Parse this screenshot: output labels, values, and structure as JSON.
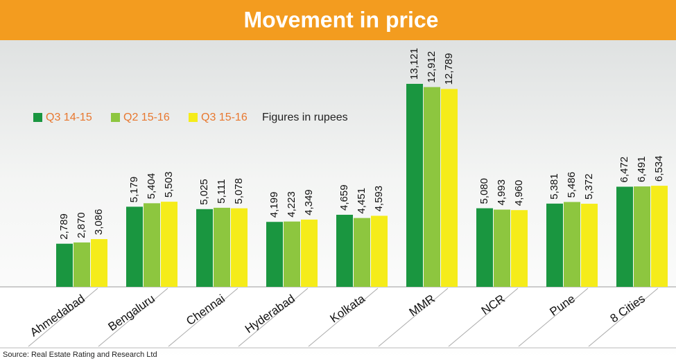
{
  "chart_data": {
    "type": "bar",
    "title": "Movement in price",
    "annotation": "Figures in rupees",
    "source": "Source: Real Estate Rating and Research Ltd",
    "categories": [
      "Ahmedabad",
      "Bengaluru",
      "Chennai",
      "Hyderabad",
      "Kolkata",
      "MMR",
      "NCR",
      "Pune",
      "8 Cities"
    ],
    "series": [
      {
        "name": "Q3 14-15",
        "color": "#1a9640",
        "values": [
          2789,
          5179,
          5025,
          4199,
          4659,
          13121,
          5080,
          5381,
          6472
        ],
        "value_labels": [
          "2,789",
          "5,179",
          "5,025",
          "4,199",
          "4,659",
          "13,121",
          "5,080",
          "5,381",
          "6,472"
        ]
      },
      {
        "name": "Q2 15-16",
        "color": "#8dc63f",
        "values": [
          2870,
          5404,
          5111,
          4223,
          4451,
          12912,
          4993,
          5486,
          6491
        ],
        "value_labels": [
          "2,870",
          "5,404",
          "5,111",
          "4,223",
          "4,451",
          "12,912",
          "4,993",
          "5,486",
          "6,491"
        ]
      },
      {
        "name": "Q3 15-16",
        "color": "#f5ec1a",
        "values": [
          3086,
          5503,
          5078,
          4349,
          4593,
          12789,
          4960,
          5372,
          6534
        ],
        "value_labels": [
          "3,086",
          "5,503",
          "5,078",
          "4,349",
          "4,593",
          "12,789",
          "4,960",
          "5,372",
          "6,534"
        ]
      }
    ]
  }
}
